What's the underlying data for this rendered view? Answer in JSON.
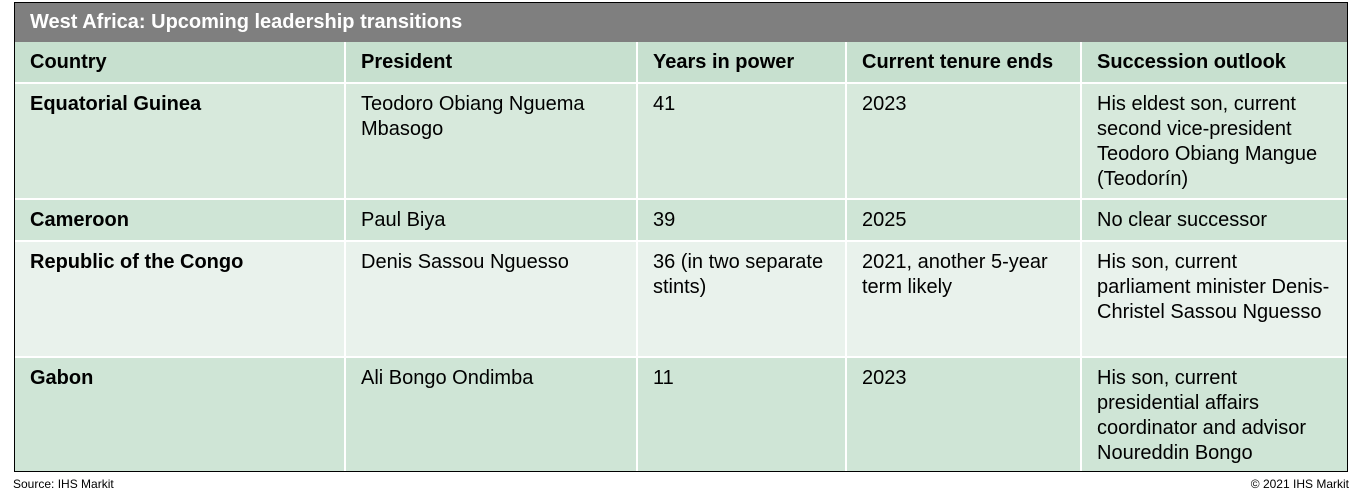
{
  "title": "West Africa: Upcoming leadership transitions",
  "table": {
    "headers": [
      "Country",
      "President",
      "Years in power",
      "Current tenure ends",
      "Succession outlook"
    ],
    "rows": [
      {
        "country": "Equatorial Guinea",
        "president": "Teodoro Obiang Nguema Mbasogo",
        "years": "41",
        "tenure_ends": "2023",
        "outlook": "His eldest son, current second vice-president Teodoro Obiang Mangue (Teodorín)"
      },
      {
        "country": "Cameroon",
        "president": "Paul Biya",
        "years": "39",
        "tenure_ends": "2025",
        "outlook": "No clear successor"
      },
      {
        "country": "Republic of the Congo",
        "president": "Denis Sassou Nguesso",
        "years": "36 (in two separate stints)",
        "tenure_ends": "2021, another 5-year term likely",
        "outlook": "His son, current parliament minister Denis-Christel Sassou Nguesso"
      },
      {
        "country": "Gabon",
        "president": "Ali Bongo Ondimba",
        "years": "11",
        "tenure_ends": "2023",
        "outlook": "His son, current presidential affairs coordinator and advisor Noureddin Bongo"
      }
    ]
  },
  "footer": {
    "source": "Source: IHS Markit",
    "copyright": "© 2021 IHS Markit"
  }
}
